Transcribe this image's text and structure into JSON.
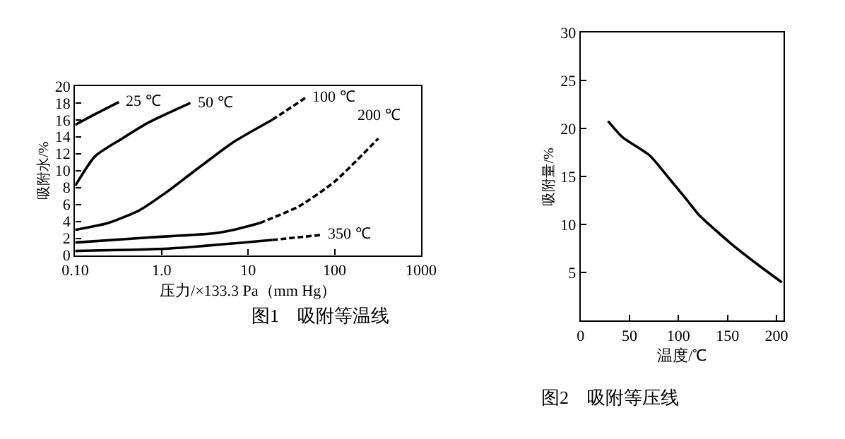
{
  "chart_data": [
    {
      "type": "line",
      "title": "图1　吸附等温线",
      "xlabel": "压力/×133.3 Pa（mm Hg）",
      "ylabel": "吸附水/%",
      "log": "x",
      "xlim": [
        0.1,
        1000
      ],
      "xticks": [
        {
          "value": 0.1,
          "label": "0.10"
        },
        {
          "value": 1,
          "label": "1.0"
        },
        10,
        100,
        1000
      ],
      "ylim": [
        0,
        20
      ],
      "yticks": [
        0,
        2,
        4,
        6,
        8,
        10,
        12,
        14,
        16,
        18,
        20
      ],
      "marker": "none",
      "series": [
        {
          "color": "#000000",
          "line_style": "solid",
          "x": [
            0.1,
            0.18,
            0.32
          ],
          "values": [
            15.4,
            16.8,
            18.1
          ]
        },
        {
          "color": "#000000",
          "line_style": "solid",
          "x": [
            0.1,
            0.17,
            0.35,
            0.71,
            2.15
          ],
          "values": [
            8.2,
            11.7,
            13.8,
            15.7,
            18.0
          ]
        },
        {
          "color": "#000000",
          "line_style": "solid",
          "x": [
            0.1,
            0.24,
            0.55,
            1.12,
            2.9,
            6.6,
            19
          ],
          "values": [
            3.0,
            3.8,
            5.3,
            7.4,
            10.6,
            13.3,
            16.0
          ]
        },
        {
          "color": "#000000",
          "line_style": "dashed",
          "x": [
            19,
            46
          ],
          "values": [
            16.0,
            18.6
          ]
        },
        {
          "color": "#000000",
          "line_style": "solid",
          "x": [
            0.1,
            0.71,
            4.1,
            7.5,
            13.6
          ],
          "values": [
            1.5,
            2.1,
            2.6,
            3.1,
            3.8
          ]
        },
        {
          "color": "#000000",
          "line_style": "dashed",
          "x": [
            13.6,
            39,
            100,
            320
          ],
          "values": [
            3.8,
            5.8,
            8.7,
            13.8
          ]
        },
        {
          "color": "#000000",
          "line_style": "solid",
          "x": [
            0.1,
            1.26,
            19
          ],
          "values": [
            0.5,
            0.8,
            1.8
          ]
        },
        {
          "color": "#000000",
          "line_style": "dashed",
          "x": [
            19,
            70
          ],
          "values": [
            1.8,
            2.4
          ]
        }
      ],
      "annotations": [
        {
          "text": "25 ℃",
          "x": 0.32,
          "y": 18.1
        },
        {
          "text": "50 ℃",
          "x": 2.15,
          "y": 18.0
        },
        {
          "text": "100 ℃",
          "x": 46,
          "y": 18.6
        },
        {
          "text": "200 ℃",
          "x": 320,
          "y": 13.8
        },
        {
          "text": "350 ℃",
          "x": 70,
          "y": 2.4
        }
      ]
    },
    {
      "type": "line",
      "title": "图2　吸附等压线",
      "xlabel": "温度/℃",
      "ylabel": "吸附量/%",
      "xlim": [
        0,
        207
      ],
      "xticks": [
        0,
        50,
        100,
        150,
        200
      ],
      "ylim": [
        0,
        30
      ],
      "yticks": [
        5,
        10,
        15,
        20,
        25,
        30
      ],
      "marker": "none",
      "series": [
        {
          "color": "#000000",
          "line_style": "solid",
          "x": [
            28,
            43,
            70.7,
            89,
            107.6,
            121,
            154,
            181.5,
            205.5
          ],
          "values": [
            20.8,
            19.1,
            17.2,
            15.0,
            12.7,
            11.0,
            8.0,
            5.8,
            4.0
          ]
        }
      ]
    }
  ]
}
